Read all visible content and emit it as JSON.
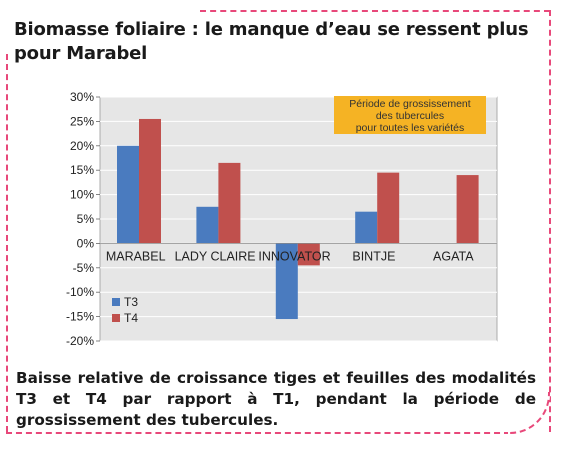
{
  "title": "Biomasse foliaire : le manque d’eau se ressent plus pour Marabel",
  "caption": "Baisse relative de croissance tiges et feuilles des modalités T3 et T4 par rapport à T1,  pendant la période de grossissement des tubercules.",
  "colors": {
    "frame": "#e8487a",
    "T3": "#4a7bbf",
    "T4": "#c0504d",
    "plot_background": "#e6e6e6",
    "annotation_background": "#f5b324"
  },
  "chart_data": {
    "type": "bar",
    "categories": [
      "MARABEL",
      "LADY CLAIRE",
      "INNOVATOR",
      "BINTJE",
      "AGATA"
    ],
    "series": [
      {
        "name": "T3",
        "values": [
          20,
          7.5,
          -15.5,
          6.5,
          null
        ]
      },
      {
        "name": "T4",
        "values": [
          25.5,
          16.5,
          -4.5,
          14.5,
          14
        ]
      }
    ],
    "ylim": [
      -20,
      30
    ],
    "yticks": [
      "-20%",
      "-15%",
      "-10%",
      "-5%",
      "0%",
      "5%",
      "10%",
      "15%",
      "20%",
      "25%",
      "30%"
    ],
    "grid": true,
    "legend_position": "bottom-left",
    "annotation": [
      "Période de grossissement",
      "des tubercules",
      "pour toutes les variétés"
    ]
  }
}
